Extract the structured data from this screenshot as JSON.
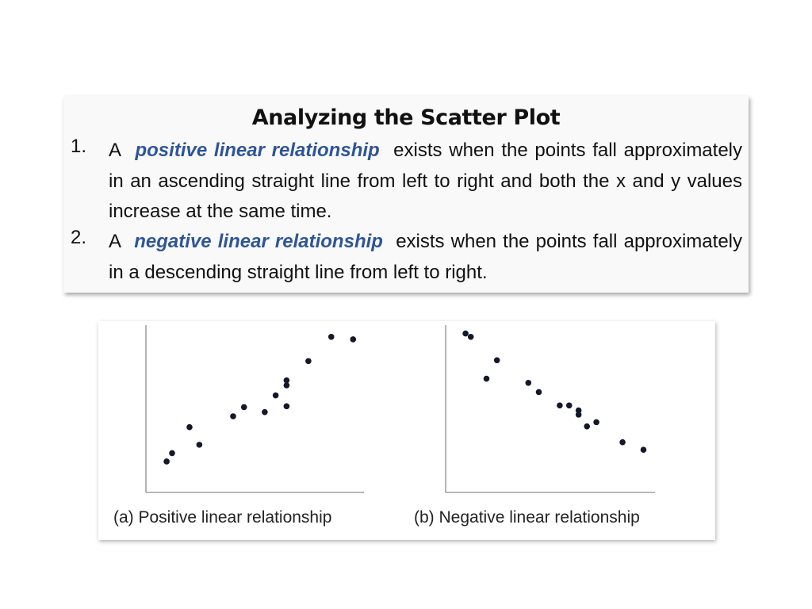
{
  "title": "Analyzing the Scatter Plot",
  "items": [
    {
      "number": "1.",
      "prefix": "A",
      "highlight": "positive linear relationship",
      "text": "exists when the points fall approximately in an ascending straight line from left to right and both the x and y values increase at the same time."
    },
    {
      "number": "2.",
      "prefix": "A",
      "highlight": "negative linear relationship",
      "text": "exists when the points fall approximately in a descending straight line from left to right."
    }
  ],
  "colors": {
    "highlight": "#2f5597",
    "point": "#14182a",
    "axis": "#8c8c8c"
  },
  "chart_data": [
    {
      "type": "scatter",
      "title": "",
      "caption": "(a)  Positive linear relationship",
      "xlabel": "",
      "ylabel": "",
      "xlim": [
        0,
        10
      ],
      "ylim": [
        0,
        10
      ],
      "grid": false,
      "points": [
        {
          "x": 0.95,
          "y": 1.85
        },
        {
          "x": 1.2,
          "y": 2.35
        },
        {
          "x": 2.0,
          "y": 3.9
        },
        {
          "x": 2.45,
          "y": 2.85
        },
        {
          "x": 4.0,
          "y": 4.55
        },
        {
          "x": 4.5,
          "y": 5.1
        },
        {
          "x": 5.45,
          "y": 4.8
        },
        {
          "x": 5.95,
          "y": 5.8
        },
        {
          "x": 6.45,
          "y": 5.15
        },
        {
          "x": 6.45,
          "y": 6.4
        },
        {
          "x": 6.45,
          "y": 6.7
        },
        {
          "x": 7.45,
          "y": 7.85
        },
        {
          "x": 8.5,
          "y": 9.3
        },
        {
          "x": 9.5,
          "y": 9.15
        }
      ]
    },
    {
      "type": "scatter",
      "title": "",
      "caption": "(b)  Negative linear relationship",
      "xlabel": "",
      "ylabel": "",
      "xlim": [
        0,
        10
      ],
      "ylim": [
        0,
        10
      ],
      "grid": false,
      "points": [
        {
          "x": 0.95,
          "y": 9.5
        },
        {
          "x": 1.2,
          "y": 9.3
        },
        {
          "x": 1.95,
          "y": 6.8
        },
        {
          "x": 2.45,
          "y": 7.9
        },
        {
          "x": 3.95,
          "y": 6.55
        },
        {
          "x": 4.45,
          "y": 6.0
        },
        {
          "x": 5.45,
          "y": 5.2
        },
        {
          "x": 5.9,
          "y": 5.2
        },
        {
          "x": 6.35,
          "y": 4.9
        },
        {
          "x": 6.35,
          "y": 4.65
        },
        {
          "x": 6.75,
          "y": 3.95
        },
        {
          "x": 7.2,
          "y": 4.2
        },
        {
          "x": 8.45,
          "y": 3.0
        },
        {
          "x": 9.45,
          "y": 2.55
        }
      ]
    }
  ]
}
